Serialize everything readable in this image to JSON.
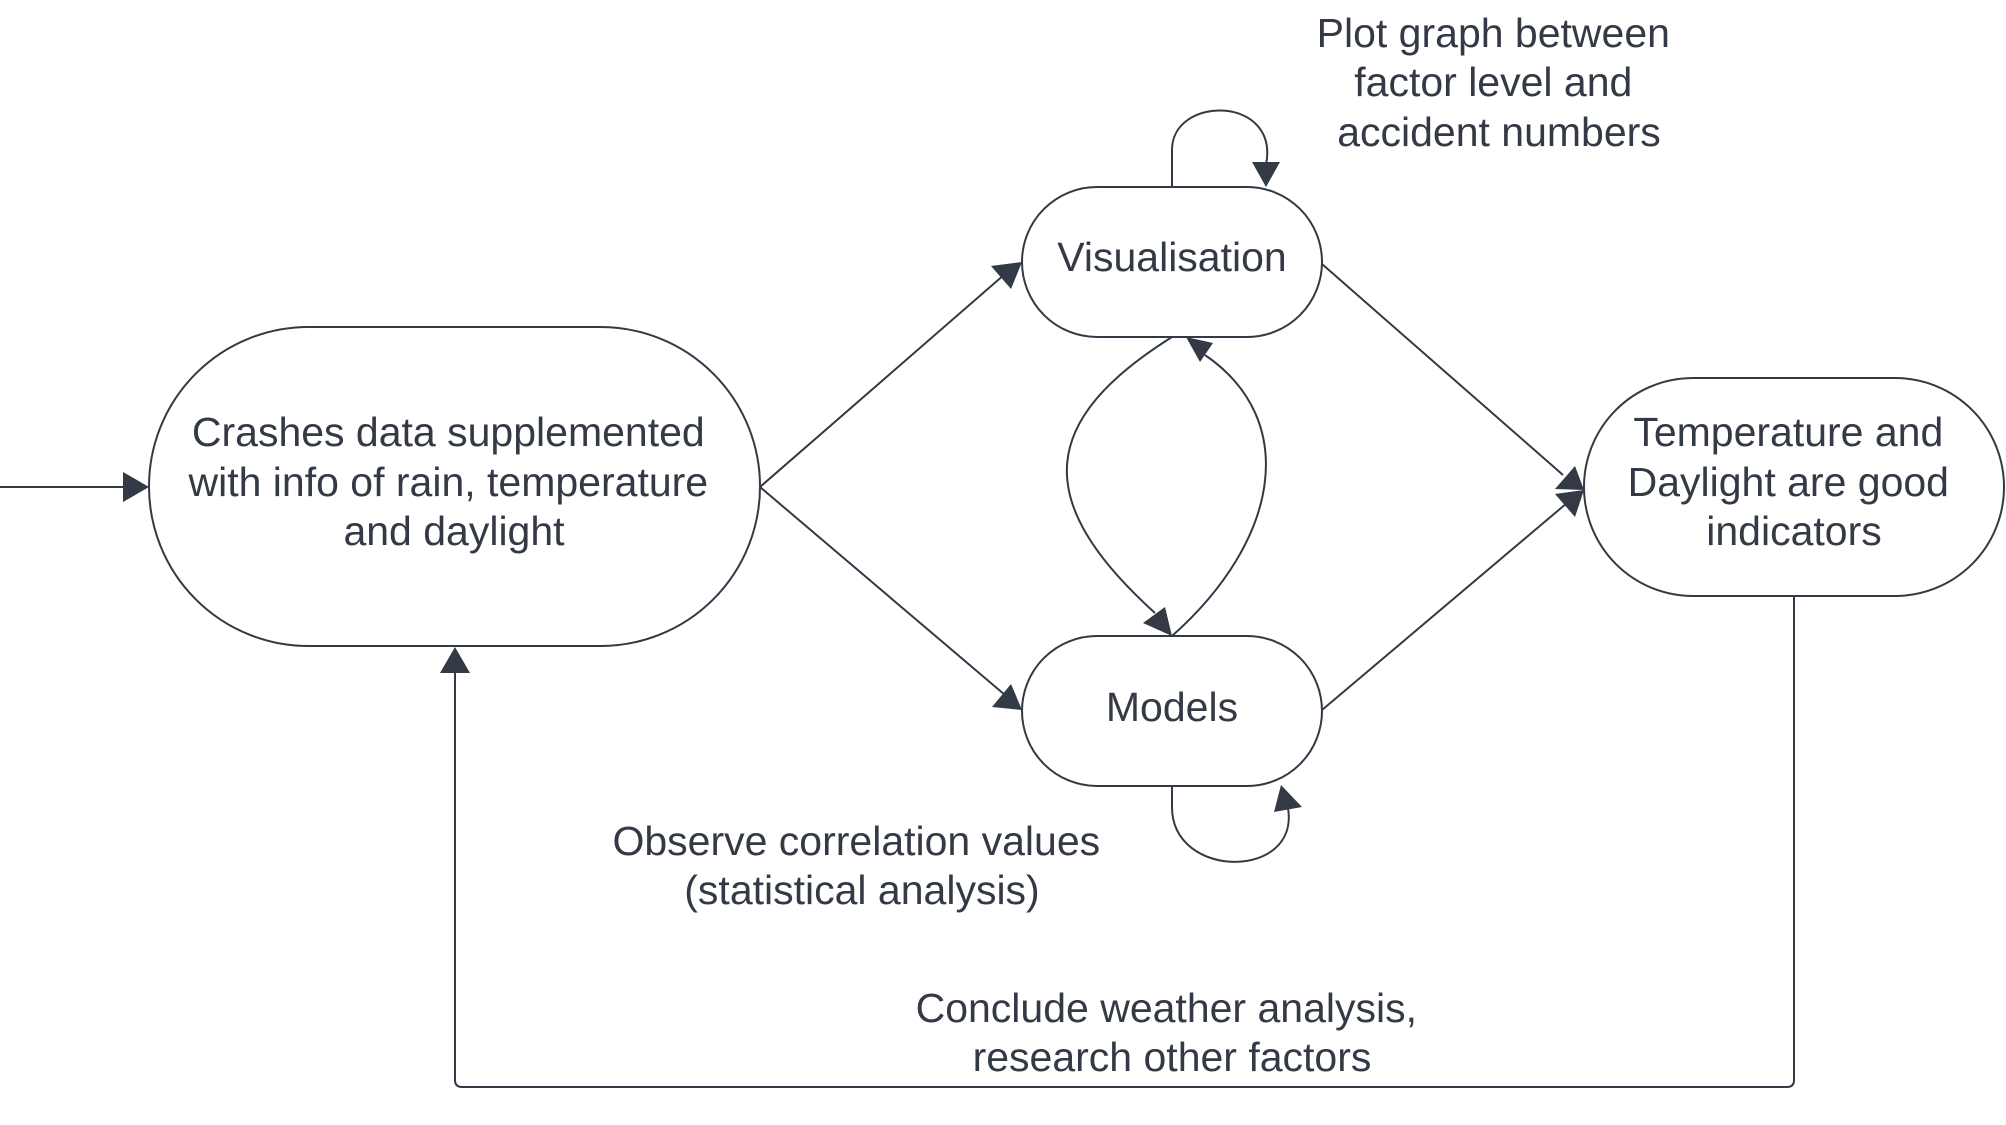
{
  "nodes": {
    "crashes": [
      "Crashes data supplemented",
      "with info of rain, temperature",
      "and daylight"
    ],
    "visualisation": [
      "Visualisation"
    ],
    "models": [
      "Models"
    ],
    "indicators": [
      "Temperature and",
      "Daylight are good",
      "indicators"
    ]
  },
  "annotations": {
    "plot": [
      "Plot graph between",
      "factor level and",
      "accident numbers"
    ],
    "observe": [
      "Observe correlation values",
      "(statistical analysis)"
    ],
    "conclude": [
      "Conclude weather analysis,",
      "research other factors"
    ]
  },
  "colors": {
    "ink": "#333a45",
    "background": "#ffffff"
  }
}
